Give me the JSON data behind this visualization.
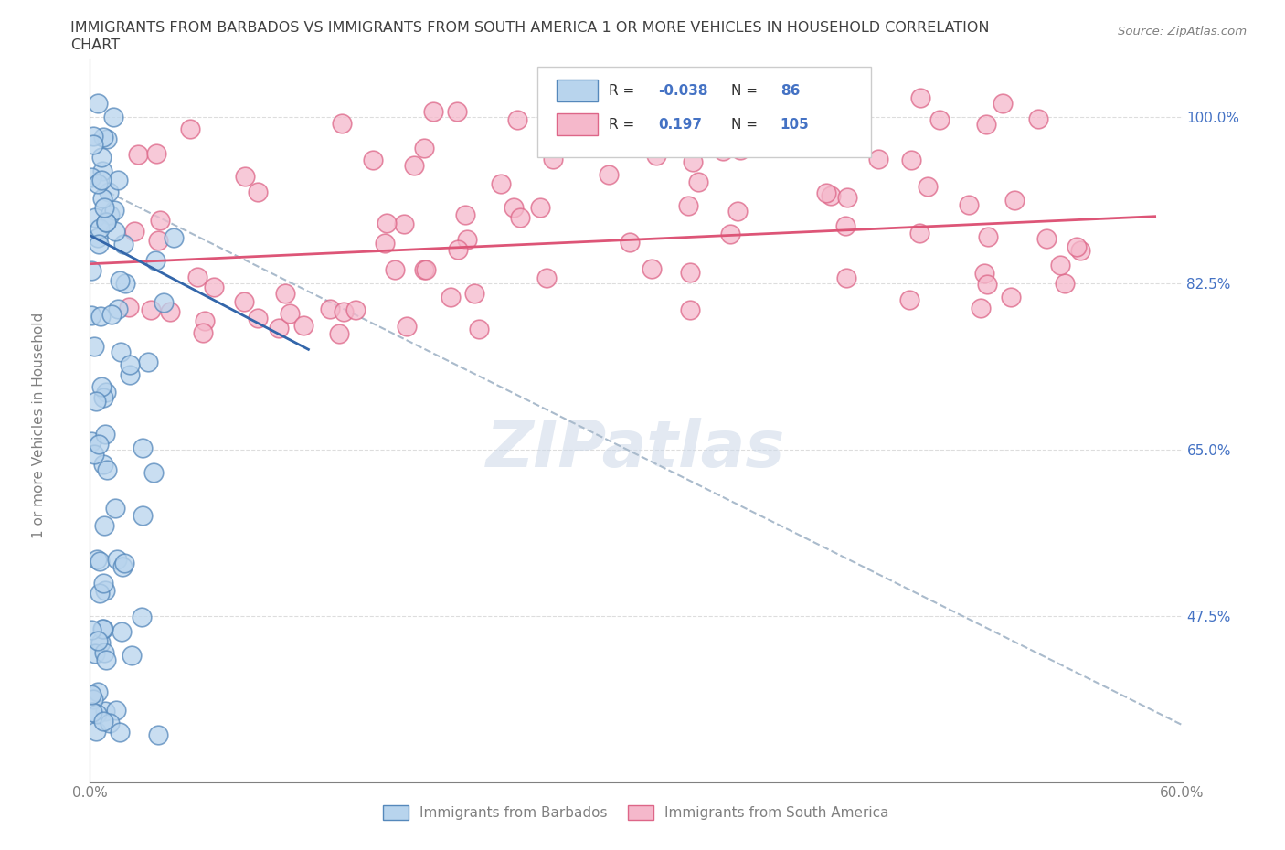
{
  "title_line1": "IMMIGRANTS FROM BARBADOS VS IMMIGRANTS FROM SOUTH AMERICA 1 OR MORE VEHICLES IN HOUSEHOLD CORRELATION",
  "title_line2": "CHART",
  "source": "Source: ZipAtlas.com",
  "ylabel": "1 or more Vehicles in Household",
  "xlim": [
    0.0,
    0.6
  ],
  "ylim": [
    0.3,
    1.06
  ],
  "xticks": [
    0.0,
    0.1,
    0.2,
    0.3,
    0.4,
    0.5,
    0.6
  ],
  "xticklabels": [
    "0.0%",
    "",
    "",
    "",
    "",
    "",
    "60.0%"
  ],
  "yticks": [
    0.475,
    0.65,
    0.825,
    1.0
  ],
  "yticklabels": [
    "47.5%",
    "65.0%",
    "82.5%",
    "100.0%"
  ],
  "barbados_fill": "#b8d4ed",
  "barbados_edge": "#5588bb",
  "south_america_fill": "#f5b8cb",
  "south_america_edge": "#dd6688",
  "trend_barbados_color": "#3366aa",
  "trend_south_america_color": "#dd5577",
  "trend_dashed_color": "#aabbcc",
  "R_barbados": -0.038,
  "N_barbados": 86,
  "R_south_america": 0.197,
  "N_south_america": 105,
  "legend_label_barbados": "Immigrants from Barbados",
  "legend_label_south_america": "Immigrants from South America",
  "watermark": "ZIPatlas",
  "background_color": "#ffffff",
  "grid_color": "#dddddd",
  "title_color": "#404040",
  "axis_tick_color": "#808080",
  "label_color": "#4472c4",
  "seed": 7
}
